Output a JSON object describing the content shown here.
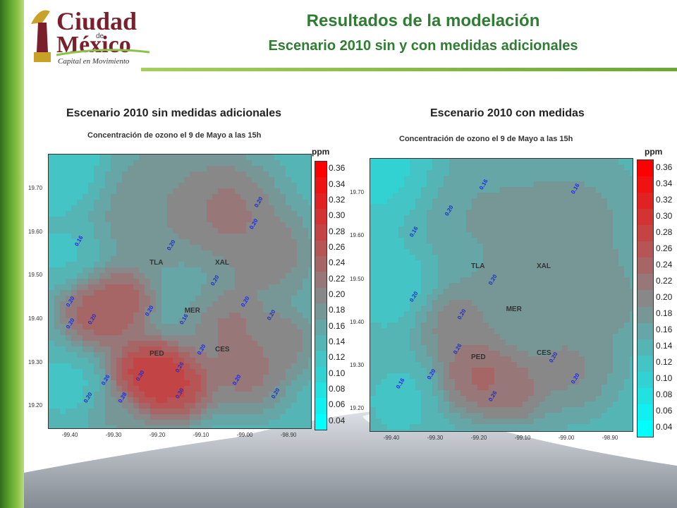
{
  "header": {
    "title": "Resultados de la modelación",
    "subtitle": "Escenario 2010 sin y con medidas adicionales",
    "logo": {
      "line1": "Ciudad",
      "line2": "de",
      "line3": "México",
      "tagline": "Capital en Movimiento"
    }
  },
  "colors": {
    "green_title": "#2e7d32",
    "low": "#00ffff",
    "mid": "#888888",
    "high": "#ff0000"
  },
  "chart_data": [
    {
      "type": "heatmap",
      "title": "Escenario 2010 sin medidas adicionales",
      "subtitle": "Concentración  de ozono el 9 de Mayo a las 15h",
      "colorbar_unit": "ppm",
      "colorbar_levels": [
        "0.36",
        "0.34",
        "0.32",
        "0.30",
        "0.28",
        "0.26",
        "0.24",
        "0.22",
        "0.20",
        "0.18",
        "0.16",
        "0.14",
        "0.12",
        "0.10",
        "0.08",
        "0.06",
        "0.04"
      ],
      "x_ticks": [
        "-99.40",
        "-99.30",
        "-99.20",
        "-99.10",
        "-99.00",
        "-98.90"
      ],
      "y_ticks": [
        "19.70",
        "19.60",
        "19.50",
        "19.40",
        "19.30",
        "19.20"
      ],
      "xlim": [
        -99.45,
        -98.85
      ],
      "ylim": [
        19.15,
        19.78
      ],
      "stations": [
        {
          "name": "TLA",
          "lon": -99.2,
          "lat": 19.53
        },
        {
          "name": "XAL",
          "lon": -99.05,
          "lat": 19.53
        },
        {
          "name": "MER",
          "lon": -99.12,
          "lat": 19.42
        },
        {
          "name": "PED",
          "lon": -99.2,
          "lat": 19.32
        },
        {
          "name": "CES",
          "lon": -99.05,
          "lat": 19.33
        }
      ],
      "contour_labels": [
        {
          "v": "0.16",
          "lon": -99.38,
          "lat": 19.58
        },
        {
          "v": "0.20",
          "lon": -99.17,
          "lat": 19.57
        },
        {
          "v": "0.20",
          "lon": -98.97,
          "lat": 19.67
        },
        {
          "v": "0.20",
          "lon": -98.98,
          "lat": 19.62
        },
        {
          "v": "0.20",
          "lon": -99.07,
          "lat": 19.49
        },
        {
          "v": "0.20",
          "lon": -99.0,
          "lat": 19.44
        },
        {
          "v": "0.20",
          "lon": -98.94,
          "lat": 19.41
        },
        {
          "v": "0.20",
          "lon": -99.4,
          "lat": 19.44
        },
        {
          "v": "0.20",
          "lon": -99.4,
          "lat": 19.39
        },
        {
          "v": "0.20",
          "lon": -99.35,
          "lat": 19.4
        },
        {
          "v": "0.20",
          "lon": -99.22,
          "lat": 19.42
        },
        {
          "v": "0.16",
          "lon": -99.14,
          "lat": 19.4
        },
        {
          "v": "0.20",
          "lon": -99.1,
          "lat": 19.33
        },
        {
          "v": "0.26",
          "lon": -99.15,
          "lat": 19.29
        },
        {
          "v": "0.26",
          "lon": -99.32,
          "lat": 19.26
        },
        {
          "v": "0.30",
          "lon": -99.24,
          "lat": 19.27
        },
        {
          "v": "0.20",
          "lon": -99.36,
          "lat": 19.22
        },
        {
          "v": "0.28",
          "lon": -99.28,
          "lat": 19.22
        },
        {
          "v": "0.30",
          "lon": -99.15,
          "lat": 19.23
        },
        {
          "v": "0.20",
          "lon": -99.02,
          "lat": 19.26
        },
        {
          "v": "0.20",
          "lon": -98.93,
          "lat": 19.23
        }
      ]
    },
    {
      "type": "heatmap",
      "title": "Escenario 2010 con medidas",
      "subtitle": "Concentración  de ozono el 9 de Mayo a las 15h",
      "colorbar_unit": "ppm",
      "colorbar_levels": [
        "0.36",
        "0.34",
        "0.32",
        "0.30",
        "0.28",
        "0.26",
        "0.24",
        "0.22",
        "0.20",
        "0.18",
        "0.16",
        "0.14",
        "0.12",
        "0.10",
        "0.08",
        "0.06",
        "0.04"
      ],
      "x_ticks": [
        "-99.40",
        "-99.30",
        "-99.20",
        "-99.10",
        "-99.00",
        "-98.90"
      ],
      "y_ticks": [
        "19.70",
        "19.60",
        "19.50",
        "19.40",
        "19.30",
        "19.20"
      ],
      "xlim": [
        -99.45,
        -98.85
      ],
      "ylim": [
        19.15,
        19.78
      ],
      "stations": [
        {
          "name": "TLA",
          "lon": -99.2,
          "lat": 19.53
        },
        {
          "name": "XAL",
          "lon": -99.05,
          "lat": 19.53
        },
        {
          "name": "MER",
          "lon": -99.12,
          "lat": 19.43
        },
        {
          "name": "PED",
          "lon": -99.2,
          "lat": 19.32
        },
        {
          "name": "CES",
          "lon": -99.05,
          "lat": 19.33
        }
      ],
      "contour_labels": [
        {
          "v": "0.16",
          "lon": -99.19,
          "lat": 19.72
        },
        {
          "v": "0.16",
          "lon": -98.98,
          "lat": 19.71
        },
        {
          "v": "0.20",
          "lon": -99.27,
          "lat": 19.66
        },
        {
          "v": "0.16",
          "lon": -99.35,
          "lat": 19.61
        },
        {
          "v": "0.20",
          "lon": -99.17,
          "lat": 19.5
        },
        {
          "v": "0.20",
          "lon": -99.35,
          "lat": 19.46
        },
        {
          "v": "0.20",
          "lon": -99.24,
          "lat": 19.42
        },
        {
          "v": "0.26",
          "lon": -99.25,
          "lat": 19.34
        },
        {
          "v": "0.20",
          "lon": -99.03,
          "lat": 19.32
        },
        {
          "v": "0.20",
          "lon": -99.31,
          "lat": 19.28
        },
        {
          "v": "0.16",
          "lon": -99.38,
          "lat": 19.26
        },
        {
          "v": "0.26",
          "lon": -99.17,
          "lat": 19.23
        },
        {
          "v": "0.20",
          "lon": -98.98,
          "lat": 19.27
        }
      ]
    }
  ]
}
